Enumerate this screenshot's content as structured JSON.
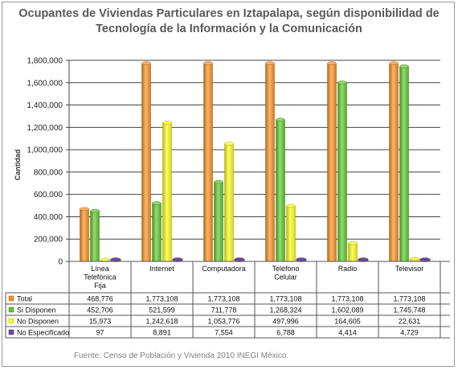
{
  "chart_data": {
    "type": "bar",
    "title_lines": [
      "Ocupantes de Viviendas Particulares en Iztapalapa, según disponibilidad de",
      "Tecnología de la Información y la Comunicación"
    ],
    "ylabel": "Cantidad",
    "xlabel": "",
    "ylim": [
      0,
      1800000
    ],
    "yticks": [
      "0",
      "200,000",
      "400,000",
      "600,000",
      "800,000",
      "1,000,000",
      "1,200,000",
      "1,400,000",
      "1,600,000",
      "1,800,000"
    ],
    "grid": true,
    "legend": "table-left",
    "categories": [
      "Línea Telefónica Fija",
      "Internet",
      "Computadora",
      "Teléfono Celular",
      "Radio",
      "Televisor"
    ],
    "category_lines": [
      [
        "Línea",
        "Telefónica",
        "Fija"
      ],
      [
        "Internet"
      ],
      [
        "Computadora"
      ],
      [
        "Teléfono",
        "Celular"
      ],
      [
        "Radio"
      ],
      [
        "Televisor"
      ]
    ],
    "series": [
      {
        "name": "Total",
        "color": "#f78f1e",
        "values": [
          468776,
          1773108,
          1773108,
          1773108,
          1773108,
          1773108
        ],
        "labels": [
          "468,776",
          "1,773,108",
          "1,773,108",
          "1,773,108",
          "1,773,108",
          "1,773,108"
        ]
      },
      {
        "name": "Si Disponen",
        "color": "#5cc82a",
        "values": [
          452706,
          521599,
          711778,
          1268324,
          1602089,
          1745748
        ],
        "labels": [
          "452,706",
          "521,599",
          "711,778",
          "1,268,324",
          "1,602,089",
          "1,745,748"
        ]
      },
      {
        "name": "No Disponen",
        "color": "#fbfb16",
        "values": [
          15973,
          1242618,
          1053776,
          497996,
          164605,
          22631
        ],
        "labels": [
          "15,973",
          "1,242,618",
          "1,053,776",
          "497,996",
          "164,605",
          "22,631"
        ]
      },
      {
        "name": "No Especificado",
        "color": "#6a4a9a",
        "values": [
          97,
          8891,
          7554,
          6788,
          4414,
          4729
        ],
        "labels": [
          "97",
          "8,891",
          "7,554",
          "6,788",
          "4,414",
          "4,729"
        ]
      }
    ],
    "source": "Fuente:   Censo de Población y Vivienda 2010 INEGI México."
  }
}
